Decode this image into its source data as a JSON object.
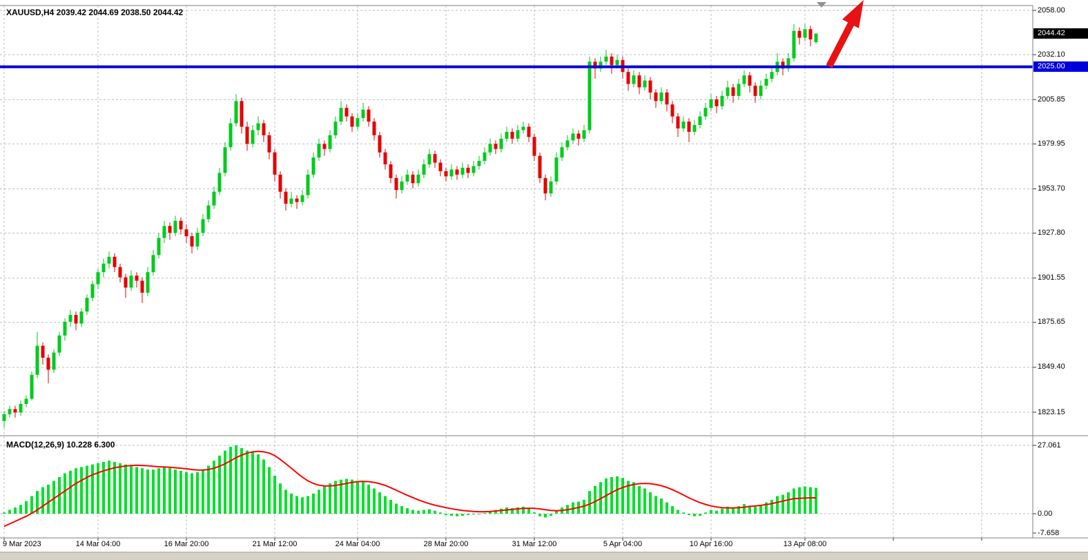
{
  "header": {
    "title": "XAUUSD,H4 2039.42 2044.69 2038.50 2044.42"
  },
  "main_panel": {
    "price_labels": [
      "2058.00",
      "2032.10",
      "2005.85",
      "1979.95",
      "1953.70",
      "1927.80",
      "1901.55",
      "1875.65",
      "1849.40",
      "1823.15"
    ],
    "current_price_tag": "2044.42",
    "level_tag": "2025.00"
  },
  "macd_panel": {
    "label": "MACD(12,26,9) 10.228 6.300",
    "axis_labels": [
      "27.061",
      "0.00",
      "-7.658"
    ]
  },
  "time_axis": {
    "labels": [
      {
        "text": "9 Mar 2023",
        "bar": 0
      },
      {
        "text": "14 Mar 04:00",
        "bar": 17
      },
      {
        "text": "16 Mar 20:00",
        "bar": 33
      },
      {
        "text": "21 Mar 12:00",
        "bar": 49
      },
      {
        "text": "24 Mar 04:00",
        "bar": 64
      },
      {
        "text": "28 Mar 20:00",
        "bar": 80
      },
      {
        "text": "31 Mar 12:00",
        "bar": 96
      },
      {
        "text": "5 Apr 04:00",
        "bar": 112
      },
      {
        "text": "10 Apr 16:00",
        "bar": 128
      },
      {
        "text": "13 Apr 08:00",
        "bar": 145
      }
    ],
    "extra_grid_bars": [
      161,
      177
    ]
  },
  "colors": {
    "background": "#ffffff",
    "grid": "#b9bdce",
    "candle_up": "#00cb1d",
    "candle_down": "#e60000",
    "macd_hist": "#00e12a",
    "macd_signal": "#ff0000",
    "level_line": "#0000dc",
    "tag_current_bg": "#000000",
    "tag_level_bg": "#0000dc",
    "arrow": "#e81212",
    "frame": "#7d7d7d",
    "tick": "#333333",
    "text": "#000000",
    "shift_marker": "#909090",
    "scrollbar": "#d6d2c8"
  },
  "chart_data": {
    "type": "candlestick",
    "symbol": "XAUUSD",
    "timeframe": "H4",
    "title": "XAUUSD,H4",
    "last_ohlc": {
      "open": 2039.42,
      "high": 2044.69,
      "low": 2038.5,
      "close": 2044.42
    },
    "price_gridlines": [
      2058.0,
      2032.1,
      2005.85,
      1979.95,
      1953.7,
      1927.8,
      1901.55,
      1875.65,
      1849.4,
      1823.15
    ],
    "ylim_main": [
      1823.15,
      2058.0
    ],
    "horizontal_level": 2025.0,
    "annotations": [
      {
        "type": "arrow",
        "direction": "up-right",
        "meaning": "bullish-breakout",
        "color": "#e81212"
      }
    ],
    "candles": [
      [
        1818,
        1824,
        1814,
        1822
      ],
      [
        1822,
        1827,
        1820,
        1825
      ],
      [
        1825,
        1827,
        1820,
        1823
      ],
      [
        1823,
        1830,
        1821,
        1828
      ],
      [
        1828,
        1833,
        1826,
        1831
      ],
      [
        1831,
        1847,
        1830,
        1845
      ],
      [
        1845,
        1870,
        1843,
        1862
      ],
      [
        1862,
        1864,
        1851,
        1855
      ],
      [
        1855,
        1857,
        1840,
        1848
      ],
      [
        1848,
        1860,
        1846,
        1858
      ],
      [
        1858,
        1870,
        1856,
        1868
      ],
      [
        1868,
        1878,
        1865,
        1876
      ],
      [
        1876,
        1883,
        1873,
        1880
      ],
      [
        1880,
        1882,
        1871,
        1875
      ],
      [
        1875,
        1884,
        1873,
        1882
      ],
      [
        1882,
        1892,
        1880,
        1890
      ],
      [
        1890,
        1900,
        1888,
        1898
      ],
      [
        1898,
        1907,
        1895,
        1905
      ],
      [
        1905,
        1913,
        1902,
        1910
      ],
      [
        1910,
        1917,
        1907,
        1914
      ],
      [
        1914,
        1916,
        1905,
        1908
      ],
      [
        1908,
        1910,
        1899,
        1902
      ],
      [
        1902,
        1904,
        1890,
        1896
      ],
      [
        1896,
        1906,
        1894,
        1903
      ],
      [
        1903,
        1905,
        1896,
        1900
      ],
      [
        1900,
        1902,
        1887,
        1893
      ],
      [
        1893,
        1908,
        1891,
        1905
      ],
      [
        1905,
        1918,
        1903,
        1915
      ],
      [
        1915,
        1928,
        1913,
        1925
      ],
      [
        1925,
        1935,
        1922,
        1932
      ],
      [
        1932,
        1934,
        1924,
        1928
      ],
      [
        1928,
        1938,
        1926,
        1935
      ],
      [
        1935,
        1937,
        1927,
        1930
      ],
      [
        1930,
        1933,
        1922,
        1926
      ],
      [
        1926,
        1928,
        1916,
        1920
      ],
      [
        1920,
        1931,
        1918,
        1928
      ],
      [
        1928,
        1939,
        1926,
        1936
      ],
      [
        1936,
        1947,
        1934,
        1944
      ],
      [
        1944,
        1955,
        1942,
        1952
      ],
      [
        1952,
        1966,
        1950,
        1963
      ],
      [
        1963,
        1981,
        1961,
        1978
      ],
      [
        1978,
        1995,
        1976,
        1992
      ],
      [
        1992,
        2009,
        1990,
        2005
      ],
      [
        2005,
        2007,
        1986,
        1990
      ],
      [
        1990,
        1993,
        1976,
        1980
      ],
      [
        1980,
        1991,
        1978,
        1988
      ],
      [
        1988,
        1996,
        1985,
        1992
      ],
      [
        1992,
        1994,
        1981,
        1985
      ],
      [
        1985,
        1987,
        1971,
        1975
      ],
      [
        1975,
        1977,
        1958,
        1962
      ],
      [
        1962,
        1964,
        1948,
        1952
      ],
      [
        1952,
        1954,
        1941,
        1945
      ],
      [
        1945,
        1952,
        1943,
        1948
      ],
      [
        1948,
        1950,
        1942,
        1946
      ],
      [
        1946,
        1953,
        1944,
        1950
      ],
      [
        1950,
        1965,
        1948,
        1962
      ],
      [
        1962,
        1975,
        1960,
        1972
      ],
      [
        1972,
        1983,
        1970,
        1980
      ],
      [
        1980,
        1982,
        1973,
        1977
      ],
      [
        1977,
        1988,
        1975,
        1985
      ],
      [
        1985,
        1996,
        1983,
        1993
      ],
      [
        1993,
        2005,
        1991,
        2001
      ],
      [
        2001,
        2003,
        1993,
        1996
      ],
      [
        1996,
        1998,
        1987,
        1990
      ],
      [
        1990,
        1998,
        1988,
        1995
      ],
      [
        1995,
        2004,
        1993,
        2000
      ],
      [
        2000,
        2002,
        1990,
        1993
      ],
      [
        1993,
        1995,
        1982,
        1985
      ],
      [
        1985,
        1987,
        1972,
        1975
      ],
      [
        1975,
        1977,
        1965,
        1968
      ],
      [
        1968,
        1970,
        1957,
        1960
      ],
      [
        1960,
        1962,
        1948,
        1953
      ],
      [
        1953,
        1961,
        1951,
        1958
      ],
      [
        1958,
        1965,
        1956,
        1962
      ],
      [
        1962,
        1964,
        1954,
        1957
      ],
      [
        1957,
        1965,
        1955,
        1962
      ],
      [
        1962,
        1971,
        1960,
        1968
      ],
      [
        1968,
        1977,
        1966,
        1974
      ],
      [
        1974,
        1976,
        1966,
        1969
      ],
      [
        1969,
        1971,
        1961,
        1964
      ],
      [
        1964,
        1966,
        1958,
        1961
      ],
      [
        1961,
        1968,
        1959,
        1965
      ],
      [
        1965,
        1967,
        1959,
        1962
      ],
      [
        1962,
        1969,
        1960,
        1966
      ],
      [
        1966,
        1968,
        1960,
        1963
      ],
      [
        1963,
        1970,
        1961,
        1967
      ],
      [
        1967,
        1973,
        1965,
        1970
      ],
      [
        1970,
        1978,
        1968,
        1975
      ],
      [
        1975,
        1983,
        1973,
        1980
      ],
      [
        1980,
        1982,
        1974,
        1977
      ],
      [
        1977,
        1986,
        1975,
        1983
      ],
      [
        1983,
        1990,
        1981,
        1987
      ],
      [
        1987,
        1989,
        1980,
        1983
      ],
      [
        1983,
        1991,
        1981,
        1988
      ],
      [
        1988,
        1993,
        1986,
        1990
      ],
      [
        1990,
        1992,
        1981,
        1984
      ],
      [
        1984,
        1986,
        1970,
        1973
      ],
      [
        1973,
        1975,
        1957,
        1960
      ],
      [
        1960,
        1962,
        1947,
        1951
      ],
      [
        1951,
        1961,
        1949,
        1958
      ],
      [
        1958,
        1975,
        1956,
        1972
      ],
      [
        1972,
        1981,
        1970,
        1978
      ],
      [
        1978,
        1985,
        1976,
        1982
      ],
      [
        1982,
        1989,
        1980,
        1986
      ],
      [
        1986,
        1988,
        1979,
        1983
      ],
      [
        1983,
        1991,
        1981,
        1988
      ],
      [
        1988,
        2031,
        1986,
        2028
      ],
      [
        2028,
        2030,
        2018,
        2024
      ],
      [
        2024,
        2031,
        2022,
        2028
      ],
      [
        2028,
        2035,
        2026,
        2031
      ],
      [
        2031,
        2033,
        2021,
        2026
      ],
      [
        2026,
        2032,
        2024,
        2029
      ],
      [
        2029,
        2031,
        2018,
        2022
      ],
      [
        2022,
        2024,
        2011,
        2015
      ],
      [
        2015,
        2023,
        2013,
        2020
      ],
      [
        2020,
        2022,
        2009,
        2013
      ],
      [
        2013,
        2020,
        2011,
        2017
      ],
      [
        2017,
        2019,
        2006,
        2010
      ],
      [
        2010,
        2012,
        2001,
        2005
      ],
      [
        2005,
        2013,
        2003,
        2010
      ],
      [
        2010,
        2012,
        1999,
        2003
      ],
      [
        2003,
        2005,
        1992,
        1996
      ],
      [
        1996,
        1998,
        1984,
        1989
      ],
      [
        1989,
        1996,
        1987,
        1993
      ],
      [
        1993,
        1995,
        1981,
        1987
      ],
      [
        1987,
        1994,
        1985,
        1991
      ],
      [
        1991,
        1999,
        1989,
        1996
      ],
      [
        1996,
        2004,
        1994,
        2001
      ],
      [
        2001,
        2009,
        1999,
        2006
      ],
      [
        2006,
        2008,
        1998,
        2002
      ],
      [
        2002,
        2011,
        2000,
        2008
      ],
      [
        2008,
        2017,
        2006,
        2013
      ],
      [
        2013,
        2015,
        2004,
        2008
      ],
      [
        2008,
        2018,
        2006,
        2015
      ],
      [
        2015,
        2023,
        2013,
        2020
      ],
      [
        2020,
        2022,
        2010,
        2014
      ],
      [
        2014,
        2016,
        2004,
        2008
      ],
      [
        2008,
        2017,
        2006,
        2014
      ],
      [
        2014,
        2021,
        2012,
        2018
      ],
      [
        2018,
        2025,
        2016,
        2022
      ],
      [
        2022,
        2033,
        2020,
        2028
      ],
      [
        2028,
        2030,
        2020,
        2024
      ],
      [
        2024,
        2033,
        2022,
        2030
      ],
      [
        2030,
        2050,
        2028,
        2046
      ],
      [
        2046,
        2048,
        2038,
        2042
      ],
      [
        2042,
        2050,
        2040,
        2047
      ],
      [
        2047,
        2049,
        2037,
        2041
      ],
      [
        2039.4,
        2044.7,
        2038.5,
        2044.4
      ]
    ],
    "macd": {
      "params": [
        12,
        26,
        9
      ],
      "value": 10.228,
      "signal_value": 6.3,
      "axis": [
        27.061,
        0.0,
        -7.658
      ],
      "histogram": [
        0.5,
        1.5,
        2.5,
        3.5,
        5,
        7,
        9,
        10.5,
        11.5,
        13,
        14.5,
        16,
        17,
        18,
        18.5,
        19,
        19.5,
        20,
        20.5,
        21,
        20.5,
        20,
        19.5,
        19,
        18.5,
        18,
        17.5,
        17.5,
        18,
        18.5,
        18,
        17.5,
        17,
        16.5,
        16,
        16.5,
        17.5,
        19,
        21,
        23,
        25,
        26.5,
        27.1,
        26,
        25,
        24.5,
        23.5,
        21.5,
        18.5,
        15,
        12,
        9.5,
        8,
        7,
        6.5,
        7,
        8,
        9.5,
        11,
        12,
        13,
        13.5,
        13.8,
        13.5,
        13,
        12.5,
        11.5,
        10,
        8.5,
        7,
        5.5,
        4,
        3,
        2.2,
        1.5,
        1.2,
        1.5,
        1.8,
        1.2,
        0.5,
        -0.5,
        -0.8,
        -1,
        -0.8,
        -0.5,
        -0.3,
        -0.2,
        0.3,
        1,
        1.5,
        2,
        2.5,
        2.2,
        2.5,
        2.8,
        2,
        0.5,
        -1,
        -1.5,
        -0.8,
        1,
        2.5,
        3.5,
        4.5,
        4.8,
        5.5,
        9,
        11,
        12.5,
        14,
        14.5,
        14.8,
        14.2,
        13,
        12.5,
        11,
        10,
        8.5,
        7,
        6,
        4.5,
        3,
        1.5,
        0.5,
        -0.5,
        -1,
        -0.8,
        0.5,
        1.5,
        1.2,
        2,
        2.8,
        2.2,
        3,
        3.8,
        3.2,
        2.8,
        3.5,
        4.5,
        5.5,
        7,
        7.5,
        8.5,
        10,
        10.5,
        10.8,
        10.5,
        10.2
      ],
      "signal": [
        -5,
        -4,
        -3,
        -2,
        -1,
        0.2,
        1.5,
        3,
        4.5,
        6,
        7.5,
        9,
        10.5,
        12,
        13.2,
        14.4,
        15.4,
        16.2,
        17,
        17.6,
        18.2,
        18.6,
        18.9,
        19.1,
        19.2,
        19.1,
        19,
        18.8,
        18.6,
        18.5,
        18.4,
        18.2,
        18,
        17.8,
        17.5,
        17.3,
        17.3,
        17.5,
        18,
        18.8,
        19.8,
        21,
        22.2,
        23.2,
        24,
        24.5,
        24.7,
        24.5,
        24,
        23,
        21.5,
        19.8,
        18,
        16.2,
        14.5,
        13,
        12,
        11.3,
        11,
        11,
        11.2,
        11.6,
        12,
        12.4,
        12.7,
        12.8,
        12.7,
        12.4,
        11.9,
        11.2,
        10.3,
        9.3,
        8.3,
        7.3,
        6.4,
        5.5,
        4.7,
        4,
        3.4,
        2.9,
        2.4,
        2,
        1.6,
        1.3,
        1.1,
        0.9,
        0.8,
        0.8,
        0.9,
        1.1,
        1.3,
        1.5,
        1.7,
        1.9,
        2.1,
        2.2,
        2.1,
        1.9,
        1.6,
        1.3,
        1.2,
        1.3,
        1.6,
        2,
        2.5,
        3,
        3.8,
        4.8,
        6,
        7.2,
        8.4,
        9.5,
        10.4,
        11.1,
        11.6,
        11.9,
        12,
        11.9,
        11.6,
        11.1,
        10.4,
        9.5,
        8.5,
        7.4,
        6.3,
        5.3,
        4.4,
        3.7,
        3.1,
        2.7,
        2.4,
        2.3,
        2.3,
        2.4,
        2.6,
        2.9,
        3.1,
        3.3,
        3.6,
        4,
        4.5,
        5,
        5.5,
        6,
        6.1,
        6.2,
        6.3,
        6.3
      ]
    }
  }
}
